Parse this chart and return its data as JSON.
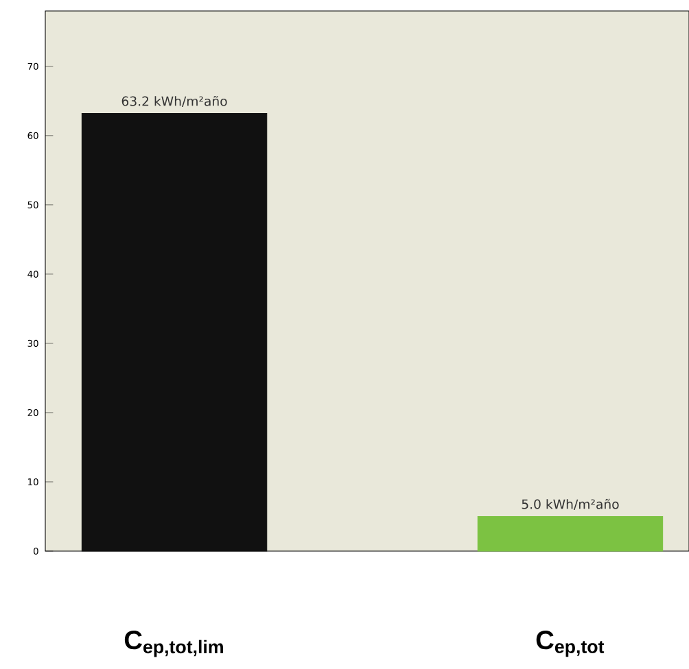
{
  "chart_data": {
    "type": "bar",
    "categories": [
      "C$_{ep,tot,lim}$",
      "C$_{ep,tot}$"
    ],
    "values": [
      63.2,
      5.0
    ],
    "colors": [
      "#111111",
      "#7cc242"
    ],
    "value_labels": [
      "63.2  kWh/m²año",
      "5.0  kWh/m²año"
    ],
    "ylim": [
      0,
      78
    ],
    "yticks": [
      0,
      10,
      20,
      30,
      40,
      50,
      60,
      70
    ],
    "grid": false
  }
}
